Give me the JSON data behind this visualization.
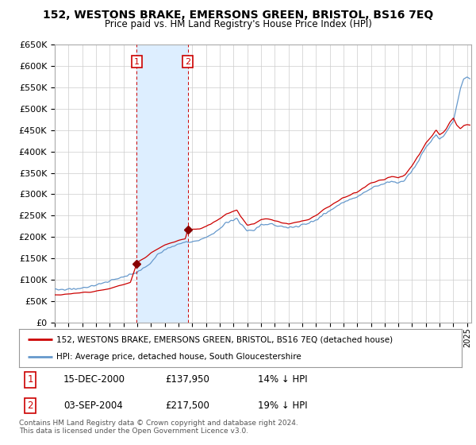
{
  "title": "152, WESTONS BRAKE, EMERSONS GREEN, BRISTOL, BS16 7EQ",
  "subtitle": "Price paid vs. HM Land Registry's House Price Index (HPI)",
  "ylim": [
    0,
    650000
  ],
  "yticks": [
    0,
    50000,
    100000,
    150000,
    200000,
    250000,
    300000,
    350000,
    400000,
    450000,
    500000,
    550000,
    600000,
    650000
  ],
  "xlim_start": 1995.0,
  "xlim_end": 2025.3,
  "sale1_x": 2000.96,
  "sale1_y": 137950,
  "sale2_x": 2004.67,
  "sale2_y": 217500,
  "sale1_date": "15-DEC-2000",
  "sale1_price": "£137,950",
  "sale1_pct": "14% ↓ HPI",
  "sale2_date": "03-SEP-2004",
  "sale2_price": "£217,500",
  "sale2_pct": "19% ↓ HPI",
  "red_line_color": "#cc0000",
  "blue_line_color": "#6699cc",
  "shade_color": "#ddeeff",
  "vline_color": "#cc0000",
  "marker_color": "#880000",
  "legend1_label": "152, WESTONS BRAKE, EMERSONS GREEN, BRISTOL, BS16 7EQ (detached house)",
  "legend2_label": "HPI: Average price, detached house, South Gloucestershire",
  "footer": "Contains HM Land Registry data © Crown copyright and database right 2024.\nThis data is licensed under the Open Government Licence v3.0.",
  "background_color": "#ffffff",
  "grid_color": "#cccccc",
  "hpi_anchors": [
    [
      1995.0,
      75000
    ],
    [
      1995.5,
      76000
    ],
    [
      1996.0,
      78000
    ],
    [
      1996.5,
      79500
    ],
    [
      1997.0,
      82000
    ],
    [
      1997.5,
      85000
    ],
    [
      1998.0,
      88000
    ],
    [
      1998.5,
      91000
    ],
    [
      1999.0,
      96000
    ],
    [
      1999.5,
      101000
    ],
    [
      2000.0,
      107000
    ],
    [
      2000.5,
      112000
    ],
    [
      2001.0,
      118000
    ],
    [
      2001.5,
      128000
    ],
    [
      2002.0,
      142000
    ],
    [
      2002.5,
      158000
    ],
    [
      2003.0,
      170000
    ],
    [
      2003.5,
      178000
    ],
    [
      2004.0,
      184000
    ],
    [
      2004.5,
      189000
    ],
    [
      2005.0,
      190000
    ],
    [
      2005.5,
      192000
    ],
    [
      2006.0,
      198000
    ],
    [
      2006.5,
      208000
    ],
    [
      2007.0,
      220000
    ],
    [
      2007.5,
      235000
    ],
    [
      2008.0,
      240000
    ],
    [
      2008.25,
      245000
    ],
    [
      2008.5,
      232000
    ],
    [
      2009.0,
      215000
    ],
    [
      2009.5,
      218000
    ],
    [
      2010.0,
      228000
    ],
    [
      2010.5,
      230000
    ],
    [
      2011.0,
      228000
    ],
    [
      2011.5,
      225000
    ],
    [
      2012.0,
      222000
    ],
    [
      2012.5,
      225000
    ],
    [
      2013.0,
      228000
    ],
    [
      2013.5,
      232000
    ],
    [
      2014.0,
      240000
    ],
    [
      2014.5,
      252000
    ],
    [
      2015.0,
      262000
    ],
    [
      2015.5,
      272000
    ],
    [
      2016.0,
      282000
    ],
    [
      2016.5,
      288000
    ],
    [
      2017.0,
      295000
    ],
    [
      2017.5,
      305000
    ],
    [
      2018.0,
      315000
    ],
    [
      2018.5,
      320000
    ],
    [
      2019.0,
      325000
    ],
    [
      2019.5,
      330000
    ],
    [
      2020.0,
      328000
    ],
    [
      2020.5,
      335000
    ],
    [
      2021.0,
      355000
    ],
    [
      2021.5,
      380000
    ],
    [
      2022.0,
      410000
    ],
    [
      2022.5,
      430000
    ],
    [
      2022.75,
      440000
    ],
    [
      2023.0,
      430000
    ],
    [
      2023.25,
      435000
    ],
    [
      2023.5,
      445000
    ],
    [
      2023.75,
      460000
    ],
    [
      2024.0,
      470000
    ],
    [
      2024.25,
      510000
    ],
    [
      2024.5,
      545000
    ],
    [
      2024.75,
      570000
    ],
    [
      2025.0,
      575000
    ],
    [
      2025.2,
      572000
    ]
  ],
  "red_anchors_pre": [
    [
      1995.0,
      64000
    ],
    [
      1995.5,
      65000
    ],
    [
      1996.0,
      67000
    ],
    [
      1996.5,
      68000
    ],
    [
      1997.0,
      70000
    ],
    [
      1997.5,
      72000
    ],
    [
      1998.0,
      74000
    ],
    [
      1998.5,
      76500
    ],
    [
      1999.0,
      80000
    ],
    [
      1999.5,
      85000
    ],
    [
      2000.0,
      89000
    ],
    [
      2000.5,
      94000
    ],
    [
      2000.96,
      137950
    ]
  ],
  "red_anchors_mid": [
    [
      2000.96,
      137950
    ],
    [
      2001.0,
      140000
    ],
    [
      2001.5,
      150000
    ],
    [
      2002.0,
      162000
    ],
    [
      2002.5,
      172000
    ],
    [
      2003.0,
      181000
    ],
    [
      2003.5,
      186000
    ],
    [
      2004.0,
      192000
    ],
    [
      2004.5,
      196000
    ],
    [
      2004.67,
      217500
    ]
  ],
  "red_anchors_post": [
    [
      2004.67,
      217500
    ],
    [
      2005.0,
      218000
    ],
    [
      2005.5,
      219000
    ],
    [
      2006.0,
      224000
    ],
    [
      2006.5,
      233000
    ],
    [
      2007.0,
      243000
    ],
    [
      2007.5,
      255000
    ],
    [
      2008.0,
      260000
    ],
    [
      2008.25,
      263000
    ],
    [
      2008.5,
      248000
    ],
    [
      2009.0,
      228000
    ],
    [
      2009.5,
      231000
    ],
    [
      2010.0,
      240000
    ],
    [
      2010.5,
      242000
    ],
    [
      2011.0,
      238000
    ],
    [
      2011.5,
      234000
    ],
    [
      2012.0,
      230000
    ],
    [
      2012.5,
      234000
    ],
    [
      2013.0,
      237000
    ],
    [
      2013.5,
      242000
    ],
    [
      2014.0,
      250000
    ],
    [
      2014.5,
      263000
    ],
    [
      2015.0,
      273000
    ],
    [
      2015.5,
      283000
    ],
    [
      2016.0,
      292000
    ],
    [
      2016.5,
      298000
    ],
    [
      2017.0,
      305000
    ],
    [
      2017.5,
      315000
    ],
    [
      2018.0,
      326000
    ],
    [
      2018.5,
      331000
    ],
    [
      2019.0,
      336000
    ],
    [
      2019.5,
      342000
    ],
    [
      2020.0,
      338000
    ],
    [
      2020.5,
      346000
    ],
    [
      2021.0,
      367000
    ],
    [
      2021.5,
      392000
    ],
    [
      2022.0,
      420000
    ],
    [
      2022.5,
      438000
    ],
    [
      2022.75,
      450000
    ],
    [
      2023.0,
      440000
    ],
    [
      2023.25,
      444000
    ],
    [
      2023.5,
      453000
    ],
    [
      2023.75,
      468000
    ],
    [
      2024.0,
      478000
    ],
    [
      2024.25,
      462000
    ],
    [
      2024.5,
      453000
    ],
    [
      2024.75,
      460000
    ],
    [
      2025.0,
      462000
    ],
    [
      2025.2,
      462000
    ]
  ]
}
